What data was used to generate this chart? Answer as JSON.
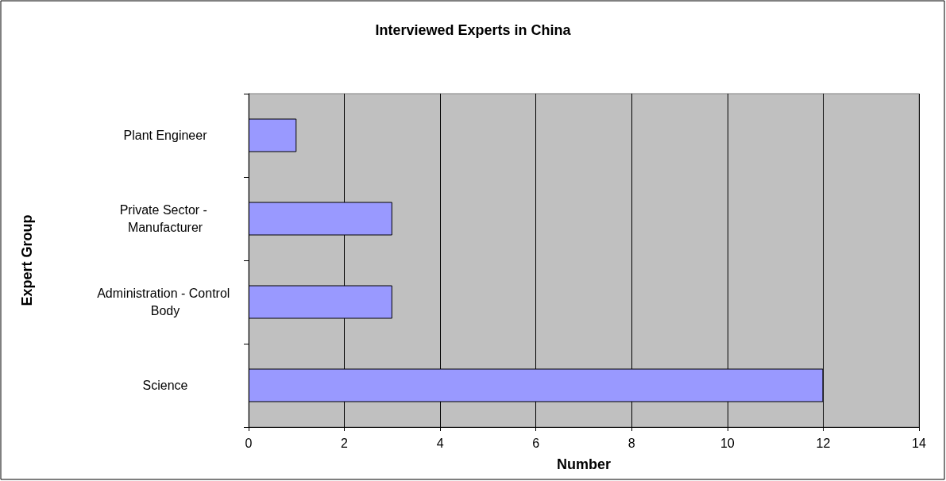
{
  "chart_data": {
    "type": "bar",
    "orientation": "horizontal",
    "title": "Interviewed Experts in China",
    "xlabel": "Number",
    "ylabel": "Expert Group",
    "categories": [
      "Plant Engineer",
      "Private Sector - Manufacturer",
      "Administration - Control Body",
      "Science"
    ],
    "values": [
      1,
      3,
      3,
      12
    ],
    "color": "#9999ff",
    "xlim": [
      0,
      14
    ],
    "xticks": [
      0,
      2,
      4,
      6,
      8,
      10,
      12,
      14
    ],
    "grid": "x"
  }
}
